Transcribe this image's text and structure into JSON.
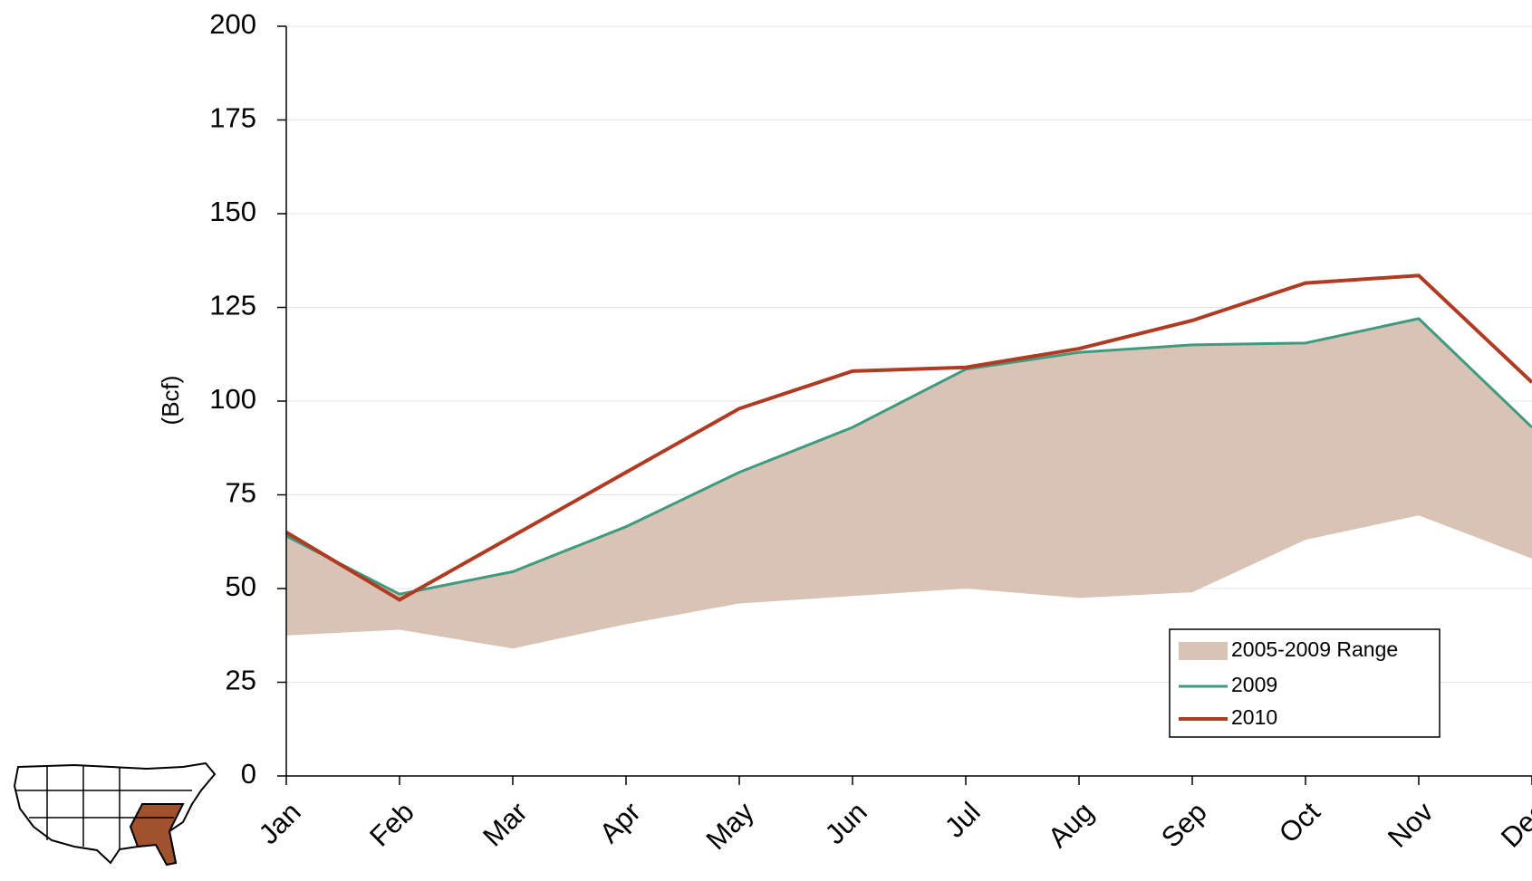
{
  "chart_data": {
    "type": "line",
    "y_label": "(Bcf)",
    "categories": [
      "Jan",
      "Feb",
      "Mar",
      "Apr",
      "May",
      "Jun",
      "Jul",
      "Aug",
      "Sep",
      "Oct",
      "Nov",
      "Dec"
    ],
    "range": {
      "name": "2005-2009 Range",
      "color": "#d9c3b5",
      "low": [
        37.5,
        39,
        34,
        40.5,
        46,
        48,
        50,
        47.5,
        49,
        63,
        69.5,
        58
      ],
      "high": [
        64,
        48.5,
        54.5,
        66.5,
        81,
        93,
        108.5,
        113,
        115,
        115.5,
        122,
        93
      ]
    },
    "series": [
      {
        "name": "2009",
        "color": "#3f9a7f",
        "values": [
          64,
          48.5,
          54.5,
          66.5,
          81,
          93,
          108.5,
          113,
          115,
          115.5,
          122,
          93
        ]
      },
      {
        "name": "2010",
        "color": "#b03a22",
        "values": [
          65,
          47,
          64,
          81,
          98,
          108,
          109,
          114,
          121.5,
          131.5,
          133.5,
          105
        ]
      }
    ],
    "ylim": [
      0,
      200
    ],
    "yticks": [
      0,
      25,
      50,
      75,
      100,
      125,
      150,
      175,
      200
    ],
    "grid": true,
    "legend": "lower right"
  }
}
